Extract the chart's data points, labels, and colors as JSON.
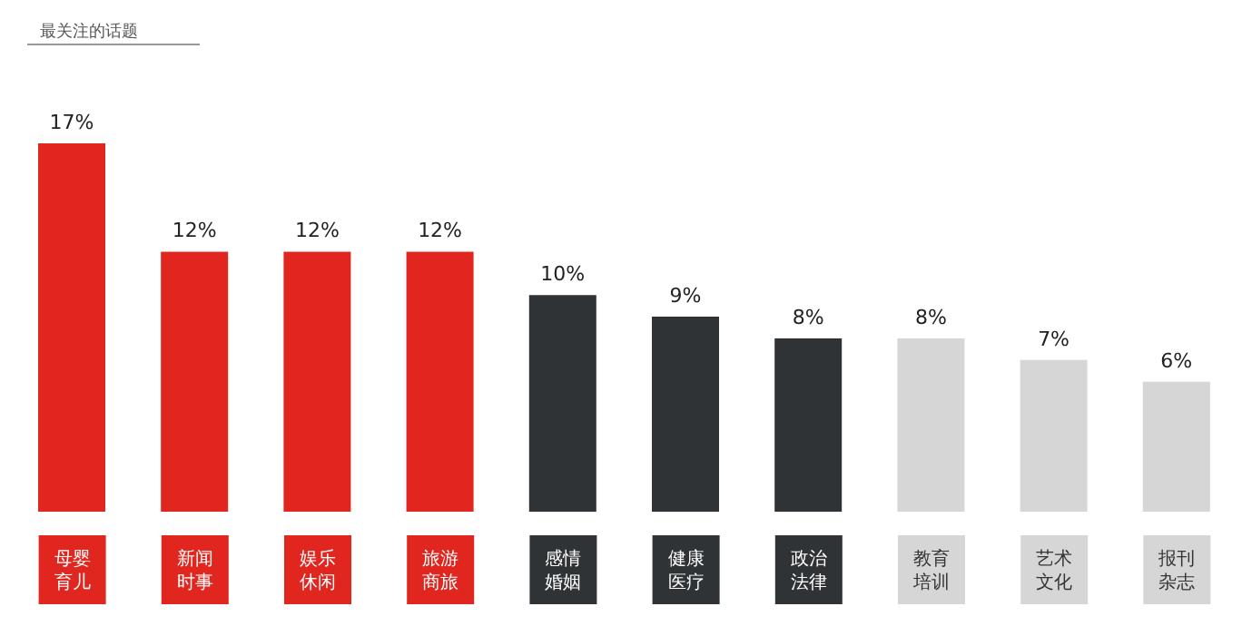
{
  "chart_data": {
    "type": "bar",
    "title": "最关注的话题",
    "categories": [
      "母婴育儿",
      "新闻时事",
      "娱乐休闲",
      "旅游商旅",
      "感情婚姻",
      "健康医疗",
      "政治法律",
      "教育培训",
      "艺术文化",
      "报刊杂志"
    ],
    "values": [
      17,
      12,
      12,
      12,
      10,
      9,
      8,
      8,
      7,
      6
    ],
    "value_labels": [
      "17%",
      "12%",
      "12%",
      "12%",
      "10%",
      "9%",
      "8%",
      "8%",
      "7%",
      "6%"
    ],
    "colors": [
      "#e0261e",
      "#e0261e",
      "#e0261e",
      "#e0261e",
      "#2f3336",
      "#2f3336",
      "#2f3336",
      "#d6d6d6",
      "#d6d6d6",
      "#d6d6d6"
    ],
    "grid": false,
    "legend": false
  }
}
